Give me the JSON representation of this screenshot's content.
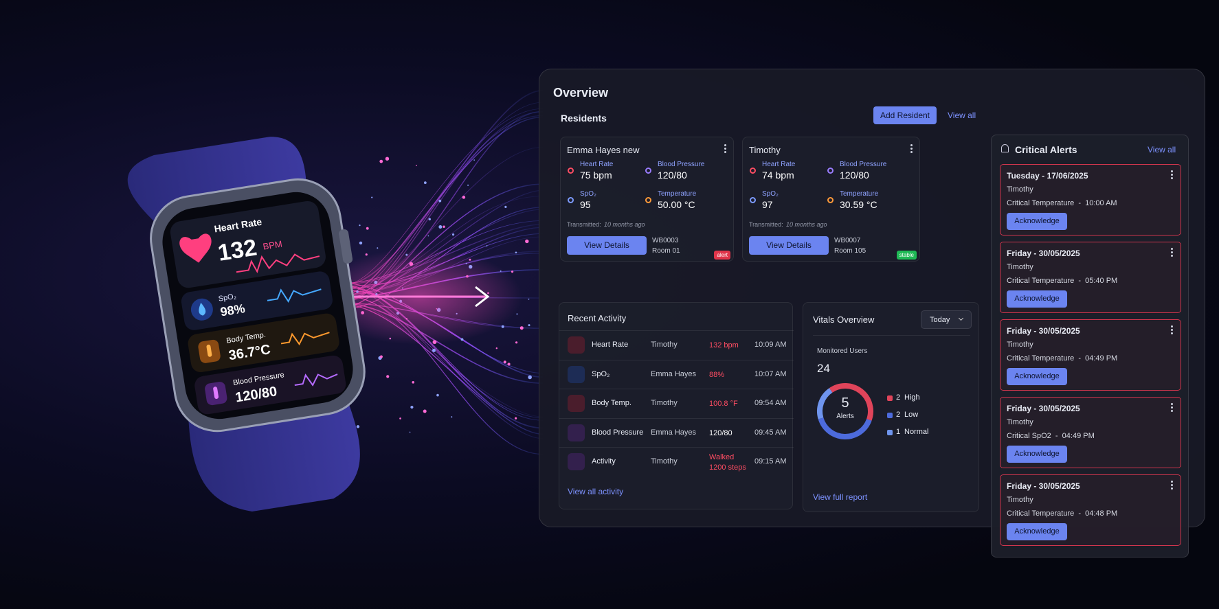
{
  "watch": {
    "heart_rate_label": "Heart Rate",
    "heart_rate": "132",
    "heart_rate_unit": "BPM",
    "spo2_label": "SpO₂",
    "spo2": "98%",
    "temp_label": "Body Temp.",
    "temp": "36.7°C",
    "bp_label": "Blood Pressure",
    "bp": "120/80"
  },
  "dashboard": {
    "title": "Overview",
    "residents": {
      "title": "Residents",
      "add_button": "Add Resident",
      "view_all": "View all",
      "cards": [
        {
          "name": "Emma Hayes new",
          "heart_rate_label": "Heart Rate",
          "heart_rate": "75 bpm",
          "blood_pressure_label": "Blood Pressure",
          "blood_pressure": "120/80",
          "spo2_label": "SpO₂",
          "spo2": "95",
          "temperature_label": "Temperature",
          "temperature": "50.00 °C",
          "transmitted_label": "Transmitted:",
          "transmitted": "10 months ago",
          "button": "View Details",
          "device": "WB0003",
          "room": "Room 01",
          "status": "alert",
          "status_color": "#e0344a"
        },
        {
          "name": "Timothy",
          "heart_rate_label": "Heart Rate",
          "heart_rate": "74 bpm",
          "blood_pressure_label": "Blood Pressure",
          "blood_pressure": "120/80",
          "spo2_label": "SpO₂",
          "spo2": "97",
          "temperature_label": "Temperature",
          "temperature": "30.59 °C",
          "transmitted_label": "Transmitted:",
          "transmitted": "10 months ago",
          "button": "View Details",
          "device": "WB0007",
          "room": "Room 105",
          "status": "stable",
          "status_color": "#1fb955"
        }
      ]
    },
    "recent_activity": {
      "title": "Recent Activity",
      "rows": [
        {
          "type": "Heart Rate",
          "person": "Timothy",
          "value": "132 bpm",
          "time": "10:09 AM",
          "color": "#ff4d63"
        },
        {
          "type": "SpO₂",
          "person": "Emma Hayes",
          "value": "88%",
          "time": "10:07 AM",
          "color": "#ff4d63"
        },
        {
          "type": "Body Temp.",
          "person": "Timothy",
          "value": "100.8 °F",
          "time": "09:54 AM",
          "color": "#ff4d63"
        },
        {
          "type": "Blood Pressure",
          "person": "Emma Hayes",
          "value": "120/80",
          "time": "09:45 AM",
          "color": "#ffffff"
        },
        {
          "type": "Activity",
          "person": "Timothy",
          "value": "Walked 1200 steps",
          "time": "09:15 AM",
          "color": "#ff4d63"
        }
      ],
      "link": "View all activity"
    },
    "vitals": {
      "title": "Vitals Overview",
      "period": "Today",
      "monitored_label": "Monitored Users",
      "monitored": 24,
      "alerts_total": 5,
      "alerts_label": "Alerts",
      "legend": [
        {
          "value": 2,
          "label": "High",
          "color": "#e0445a"
        },
        {
          "value": 2,
          "label": "Low",
          "color": "#4d6bdc"
        },
        {
          "value": 1,
          "label": "Normal",
          "color": "#6f95ee"
        }
      ],
      "link": "View full report"
    },
    "critical_alerts": {
      "title": "Critical Alerts",
      "view_all": "View all",
      "items": [
        {
          "date": "Tuesday - 17/06/2025",
          "person": "Timothy",
          "detail": "Critical Temperature  -  10:00 AM",
          "button": "Acknowledge"
        },
        {
          "date": "Friday - 30/05/2025",
          "person": "Timothy",
          "detail": "Critical Temperature  -  05:40 PM",
          "button": "Acknowledge"
        },
        {
          "date": "Friday - 30/05/2025",
          "person": "Timothy",
          "detail": "Critical Temperature  -  04:49 PM",
          "button": "Acknowledge"
        },
        {
          "date": "Friday - 30/05/2025",
          "person": "Timothy",
          "detail": "Critical SpO2  -  04:49 PM",
          "button": "Acknowledge"
        },
        {
          "date": "Friday - 30/05/2025",
          "person": "Timothy",
          "detail": "Critical Temperature  -  04:48 PM",
          "button": "Acknowledge"
        }
      ]
    }
  }
}
